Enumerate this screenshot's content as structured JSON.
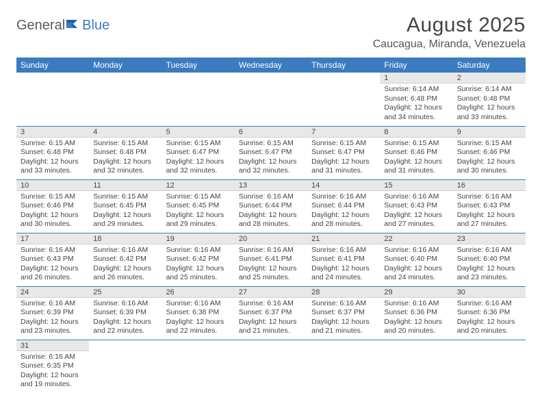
{
  "logo": {
    "text1": "General",
    "text2": "Blue"
  },
  "title": "August 2025",
  "location": "Caucagua, Miranda, Venezuela",
  "colors": {
    "header_bg": "#3b7bbf",
    "header_text": "#ffffff",
    "daynum_bg": "#e8e8e8",
    "row_border": "#3b7bbf",
    "text": "#444444"
  },
  "weekdays": [
    "Sunday",
    "Monday",
    "Tuesday",
    "Wednesday",
    "Thursday",
    "Friday",
    "Saturday"
  ],
  "weeks": [
    [
      null,
      null,
      null,
      null,
      null,
      {
        "n": "1",
        "sr": "6:14 AM",
        "ss": "6:48 PM",
        "dl": "12 hours and 34 minutes."
      },
      {
        "n": "2",
        "sr": "6:14 AM",
        "ss": "6:48 PM",
        "dl": "12 hours and 33 minutes."
      }
    ],
    [
      {
        "n": "3",
        "sr": "6:15 AM",
        "ss": "6:48 PM",
        "dl": "12 hours and 33 minutes."
      },
      {
        "n": "4",
        "sr": "6:15 AM",
        "ss": "6:48 PM",
        "dl": "12 hours and 32 minutes."
      },
      {
        "n": "5",
        "sr": "6:15 AM",
        "ss": "6:47 PM",
        "dl": "12 hours and 32 minutes."
      },
      {
        "n": "6",
        "sr": "6:15 AM",
        "ss": "6:47 PM",
        "dl": "12 hours and 32 minutes."
      },
      {
        "n": "7",
        "sr": "6:15 AM",
        "ss": "6:47 PM",
        "dl": "12 hours and 31 minutes."
      },
      {
        "n": "8",
        "sr": "6:15 AM",
        "ss": "6:46 PM",
        "dl": "12 hours and 31 minutes."
      },
      {
        "n": "9",
        "sr": "6:15 AM",
        "ss": "6:46 PM",
        "dl": "12 hours and 30 minutes."
      }
    ],
    [
      {
        "n": "10",
        "sr": "6:15 AM",
        "ss": "6:46 PM",
        "dl": "12 hours and 30 minutes."
      },
      {
        "n": "11",
        "sr": "6:15 AM",
        "ss": "6:45 PM",
        "dl": "12 hours and 29 minutes."
      },
      {
        "n": "12",
        "sr": "6:15 AM",
        "ss": "6:45 PM",
        "dl": "12 hours and 29 minutes."
      },
      {
        "n": "13",
        "sr": "6:16 AM",
        "ss": "6:44 PM",
        "dl": "12 hours and 28 minutes."
      },
      {
        "n": "14",
        "sr": "6:16 AM",
        "ss": "6:44 PM",
        "dl": "12 hours and 28 minutes."
      },
      {
        "n": "15",
        "sr": "6:16 AM",
        "ss": "6:43 PM",
        "dl": "12 hours and 27 minutes."
      },
      {
        "n": "16",
        "sr": "6:16 AM",
        "ss": "6:43 PM",
        "dl": "12 hours and 27 minutes."
      }
    ],
    [
      {
        "n": "17",
        "sr": "6:16 AM",
        "ss": "6:43 PM",
        "dl": "12 hours and 26 minutes."
      },
      {
        "n": "18",
        "sr": "6:16 AM",
        "ss": "6:42 PM",
        "dl": "12 hours and 26 minutes."
      },
      {
        "n": "19",
        "sr": "6:16 AM",
        "ss": "6:42 PM",
        "dl": "12 hours and 25 minutes."
      },
      {
        "n": "20",
        "sr": "6:16 AM",
        "ss": "6:41 PM",
        "dl": "12 hours and 25 minutes."
      },
      {
        "n": "21",
        "sr": "6:16 AM",
        "ss": "6:41 PM",
        "dl": "12 hours and 24 minutes."
      },
      {
        "n": "22",
        "sr": "6:16 AM",
        "ss": "6:40 PM",
        "dl": "12 hours and 24 minutes."
      },
      {
        "n": "23",
        "sr": "6:16 AM",
        "ss": "6:40 PM",
        "dl": "12 hours and 23 minutes."
      }
    ],
    [
      {
        "n": "24",
        "sr": "6:16 AM",
        "ss": "6:39 PM",
        "dl": "12 hours and 23 minutes."
      },
      {
        "n": "25",
        "sr": "6:16 AM",
        "ss": "6:39 PM",
        "dl": "12 hours and 22 minutes."
      },
      {
        "n": "26",
        "sr": "6:16 AM",
        "ss": "6:38 PM",
        "dl": "12 hours and 22 minutes."
      },
      {
        "n": "27",
        "sr": "6:16 AM",
        "ss": "6:37 PM",
        "dl": "12 hours and 21 minutes."
      },
      {
        "n": "28",
        "sr": "6:16 AM",
        "ss": "6:37 PM",
        "dl": "12 hours and 21 minutes."
      },
      {
        "n": "29",
        "sr": "6:16 AM",
        "ss": "6:36 PM",
        "dl": "12 hours and 20 minutes."
      },
      {
        "n": "30",
        "sr": "6:16 AM",
        "ss": "6:36 PM",
        "dl": "12 hours and 20 minutes."
      }
    ],
    [
      {
        "n": "31",
        "sr": "6:16 AM",
        "ss": "6:35 PM",
        "dl": "12 hours and 19 minutes."
      },
      null,
      null,
      null,
      null,
      null,
      null
    ]
  ],
  "labels": {
    "sunrise": "Sunrise:",
    "sunset": "Sunset:",
    "daylight": "Daylight:"
  }
}
